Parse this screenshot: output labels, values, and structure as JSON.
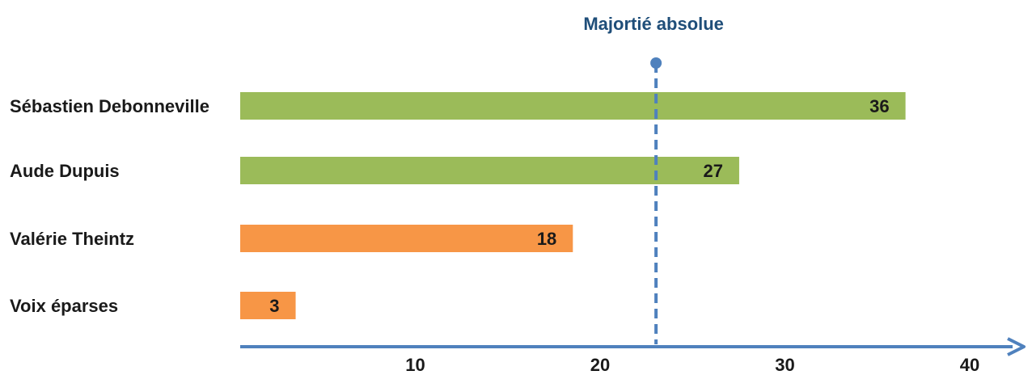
{
  "chart_data": {
    "type": "bar",
    "orientation": "horizontal",
    "categories": [
      "Sébastien Debonneville",
      "Aude Dupuis",
      "Valérie Theintz",
      "Voix éparses"
    ],
    "values": [
      36,
      27,
      18,
      3
    ],
    "bar_colors": [
      "#9bbb59",
      "#9bbb59",
      "#f79646",
      "#f79646"
    ],
    "xlim": [
      0,
      40
    ],
    "xticks": [
      10,
      20,
      30,
      40
    ],
    "grid": false,
    "reference_line": {
      "label": "Majortié absolue",
      "value": 22.5,
      "color": "#4f81bd",
      "style": "dashed"
    },
    "axis_color": "#4f81bd"
  }
}
